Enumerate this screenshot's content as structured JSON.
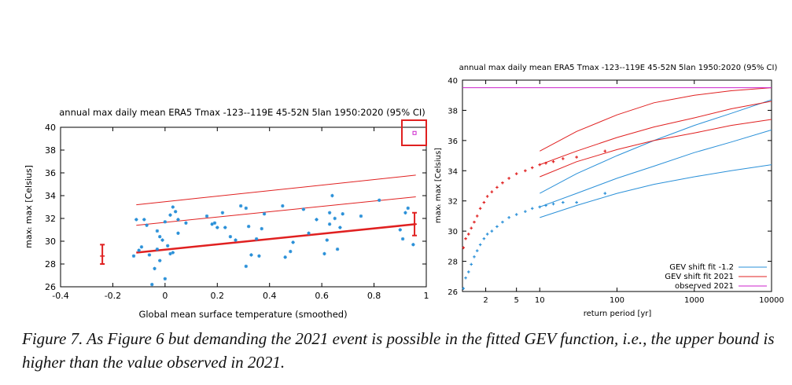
{
  "figure": {
    "caption": "Figure 7. As Figure 6 but demanding the 2021 event is possible in the fitted GEV function, i.e., the upper bound is higher than the value observed in 2021."
  },
  "colors": {
    "blue": "#2a90d8",
    "red": "#e02020",
    "magenta": "#cc22cc",
    "axis": "#000000"
  },
  "chart_data": [
    {
      "type": "scatter",
      "title": "annual max daily mean ERA5 Tmax -123--119E 45-52N 5lan 1950:2020 (95% CI)",
      "xlabel": "Global mean surface temperature (smoothed)",
      "ylabel": "maxₜ max [Celsius]",
      "xlim": [
        -0.4,
        1
      ],
      "ylim": [
        26,
        40
      ],
      "xticks": [
        "-0.4",
        "-0.2",
        "0",
        "0.2",
        "0.4",
        "0.6",
        "0.8",
        "1"
      ],
      "yticks": [
        "26",
        "28",
        "30",
        "32",
        "34",
        "36",
        "38",
        "40"
      ],
      "grid": false,
      "points": [
        [
          -0.12,
          28.7
        ],
        [
          -0.11,
          31.9
        ],
        [
          -0.1,
          29.2
        ],
        [
          -0.09,
          29.5
        ],
        [
          -0.08,
          31.9
        ],
        [
          -0.07,
          31.4
        ],
        [
          -0.06,
          28.8
        ],
        [
          -0.05,
          26.2
        ],
        [
          -0.04,
          27.6
        ],
        [
          -0.03,
          29.3
        ],
        [
          -0.03,
          30.9
        ],
        [
          -0.02,
          30.4
        ],
        [
          -0.02,
          28.3
        ],
        [
          -0.01,
          30.1
        ],
        [
          0.0,
          31.7
        ],
        [
          0.0,
          26.7
        ],
        [
          0.01,
          29.6
        ],
        [
          0.02,
          28.9
        ],
        [
          0.02,
          32.3
        ],
        [
          0.03,
          29.0
        ],
        [
          0.03,
          33.0
        ],
        [
          0.04,
          32.6
        ],
        [
          0.05,
          31.9
        ],
        [
          0.05,
          30.7
        ],
        [
          0.08,
          31.6
        ],
        [
          0.16,
          32.2
        ],
        [
          0.18,
          31.5
        ],
        [
          0.19,
          31.6
        ],
        [
          0.2,
          31.2
        ],
        [
          0.22,
          32.5
        ],
        [
          0.23,
          31.2
        ],
        [
          0.25,
          30.4
        ],
        [
          0.27,
          30.1
        ],
        [
          0.29,
          33.1
        ],
        [
          0.31,
          32.9
        ],
        [
          0.31,
          27.8
        ],
        [
          0.32,
          31.3
        ],
        [
          0.33,
          28.8
        ],
        [
          0.35,
          30.2
        ],
        [
          0.36,
          28.7
        ],
        [
          0.37,
          31.1
        ],
        [
          0.38,
          32.4
        ],
        [
          0.45,
          33.1
        ],
        [
          0.46,
          28.6
        ],
        [
          0.48,
          29.1
        ],
        [
          0.49,
          29.9
        ],
        [
          0.53,
          32.8
        ],
        [
          0.55,
          30.7
        ],
        [
          0.58,
          31.9
        ],
        [
          0.61,
          28.9
        ],
        [
          0.62,
          30.1
        ],
        [
          0.63,
          31.5
        ],
        [
          0.63,
          32.5
        ],
        [
          0.64,
          34.0
        ],
        [
          0.65,
          32.0
        ],
        [
          0.66,
          29.3
        ],
        [
          0.67,
          31.2
        ],
        [
          0.68,
          32.4
        ],
        [
          0.75,
          32.2
        ],
        [
          0.82,
          33.6
        ],
        [
          0.9,
          31.0
        ],
        [
          0.91,
          30.2
        ],
        [
          0.92,
          32.5
        ],
        [
          0.93,
          32.9
        ],
        [
          0.95,
          29.7
        ]
      ],
      "observed_2021": [
        0.955,
        39.5
      ],
      "fit_lines": [
        {
          "name": "central fit",
          "x": [
            -0.11,
            0.96
          ],
          "y": [
            29.0,
            31.5
          ]
        },
        {
          "name": "upper line 1",
          "x": [
            -0.11,
            0.96
          ],
          "y": [
            31.4,
            33.9
          ]
        },
        {
          "name": "upper line 2",
          "x": [
            -0.11,
            0.96
          ],
          "y": [
            33.2,
            35.8
          ]
        }
      ],
      "error_bars": [
        {
          "x": -0.24,
          "low": 28.0,
          "mid": 28.7,
          "high": 29.7
        },
        {
          "x": 0.955,
          "low": 30.5,
          "mid": 31.5,
          "high": 32.5
        }
      ]
    },
    {
      "type": "scatter",
      "title": "annual max daily mean ERA5 Tmax -123--119E 45-52N 5lan 1950:2020 (95% CI)",
      "xlabel": "return period [yr]",
      "ylabel": "maxₜ max [Celsius]",
      "xscale": "log",
      "xlim": [
        1,
        10000
      ],
      "ylim": [
        26,
        40
      ],
      "xticks": [
        "2",
        "5",
        "10",
        "100",
        "1000",
        "10000"
      ],
      "yticks": [
        "26",
        "28",
        "30",
        "32",
        "34",
        "36",
        "38",
        "40"
      ],
      "grid": false,
      "legend": {
        "placement": "bottom-right",
        "entries": [
          "GEV shift fit -1.2",
          "GEV shift fit 2021",
          "observed 2021"
        ]
      },
      "series": [
        {
          "name": "GEV shift fit -1.2",
          "points": [
            [
              1.03,
              26.2
            ],
            [
              1.1,
              26.9
            ],
            [
              1.2,
              27.3
            ],
            [
              1.3,
              27.8
            ],
            [
              1.42,
              28.3
            ],
            [
              1.55,
              28.7
            ],
            [
              1.7,
              29.1
            ],
            [
              1.9,
              29.5
            ],
            [
              2.1,
              29.8
            ],
            [
              2.4,
              30.0
            ],
            [
              2.8,
              30.3
            ],
            [
              3.3,
              30.6
            ],
            [
              4.0,
              30.9
            ],
            [
              5.0,
              31.1
            ],
            [
              6.5,
              31.3
            ],
            [
              8.0,
              31.5
            ],
            [
              10,
              31.6
            ],
            [
              12,
              31.7
            ],
            [
              15,
              31.8
            ],
            [
              20,
              31.9
            ],
            [
              30,
              31.9
            ],
            [
              70,
              32.5
            ]
          ],
          "fit": {
            "x": [
              10,
              30,
              100,
              300,
              1000,
              3000,
              10000
            ],
            "y": [
              31.6,
              32.5,
              33.5,
              34.3,
              35.2,
              35.9,
              36.7
            ]
          },
          "ci_upper": {
            "x": [
              10,
              30,
              100,
              300,
              1000,
              3000,
              10000
            ],
            "y": [
              32.5,
              33.8,
              35.0,
              36.0,
              37.0,
              37.8,
              38.7
            ]
          },
          "ci_lower": {
            "x": [
              10,
              30,
              100,
              300,
              1000,
              3000,
              10000
            ],
            "y": [
              30.9,
              31.7,
              32.5,
              33.1,
              33.6,
              34.0,
              34.4
            ]
          }
        },
        {
          "name": "GEV shift fit 2021",
          "points": [
            [
              1.03,
              28.9
            ],
            [
              1.1,
              29.5
            ],
            [
              1.2,
              29.8
            ],
            [
              1.3,
              30.2
            ],
            [
              1.42,
              30.6
            ],
            [
              1.55,
              31.0
            ],
            [
              1.7,
              31.5
            ],
            [
              1.9,
              31.9
            ],
            [
              2.1,
              32.3
            ],
            [
              2.4,
              32.6
            ],
            [
              2.8,
              32.9
            ],
            [
              3.3,
              33.2
            ],
            [
              4.0,
              33.5
            ],
            [
              5.0,
              33.8
            ],
            [
              6.5,
              34.0
            ],
            [
              8.0,
              34.2
            ],
            [
              10,
              34.4
            ],
            [
              12,
              34.5
            ],
            [
              15,
              34.6
            ],
            [
              20,
              34.8
            ],
            [
              30,
              34.9
            ],
            [
              70,
              35.3
            ]
          ],
          "fit": {
            "x": [
              10,
              30,
              100,
              300,
              1000,
              3000,
              10000
            ],
            "y": [
              34.4,
              35.3,
              36.2,
              36.9,
              37.5,
              38.1,
              38.6
            ]
          },
          "ci_upper": {
            "x": [
              10,
              30,
              100,
              300,
              1000,
              3000,
              10000
            ],
            "y": [
              35.3,
              36.6,
              37.7,
              38.5,
              39.0,
              39.3,
              39.5
            ]
          },
          "ci_lower": {
            "x": [
              10,
              30,
              100,
              300,
              1000,
              3000,
              10000
            ],
            "y": [
              33.6,
              34.6,
              35.4,
              36.0,
              36.5,
              37.0,
              37.4
            ]
          }
        },
        {
          "name": "observed 2021",
          "y": 39.5
        }
      ]
    }
  ]
}
